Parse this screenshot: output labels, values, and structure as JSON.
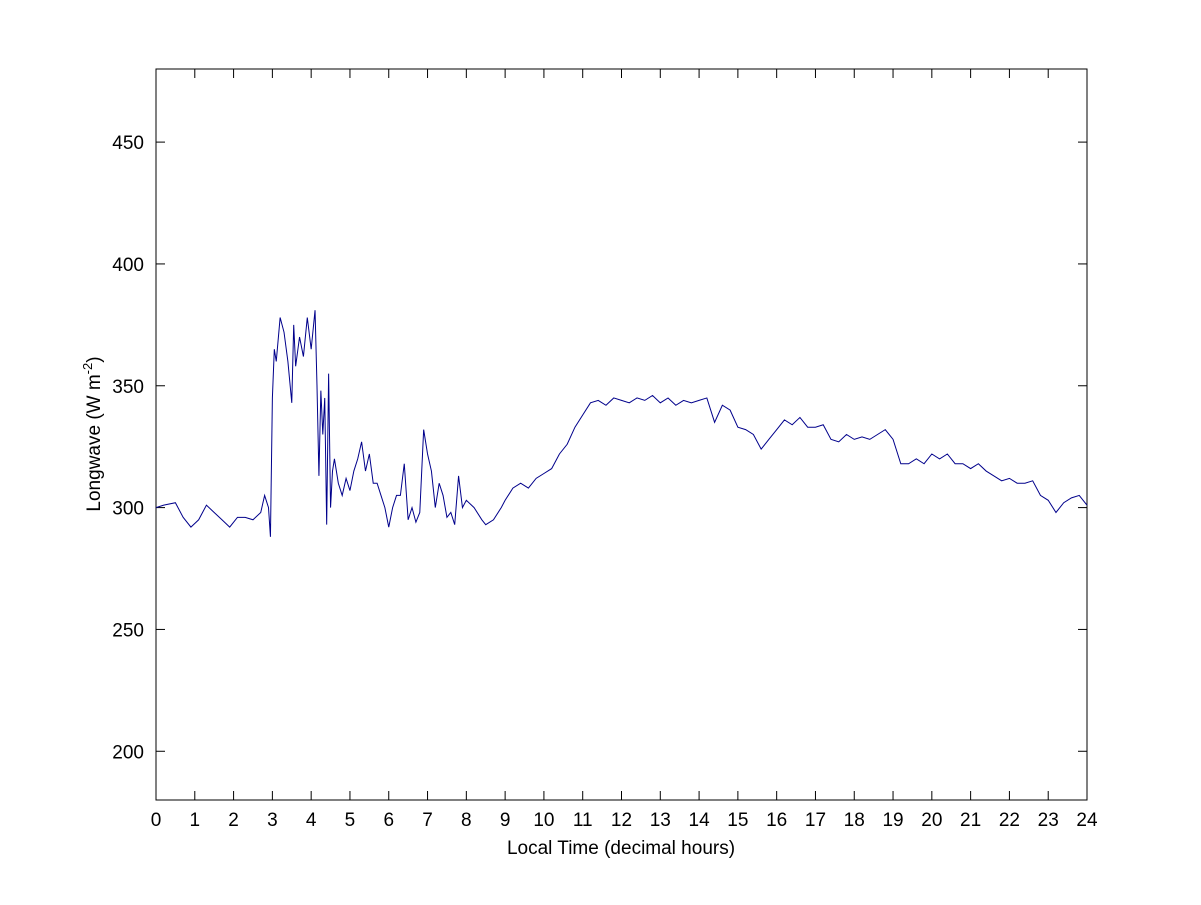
{
  "chart_data": {
    "type": "line",
    "xlabel": "Local Time (decimal hours)",
    "ylabel_parts": [
      "Longwave (W m",
      "-2",
      ")"
    ],
    "x": [
      0,
      0.2,
      0.5,
      0.7,
      0.9,
      1.1,
      1.3,
      1.5,
      1.7,
      1.9,
      2.1,
      2.3,
      2.5,
      2.7,
      2.8,
      2.9,
      2.95,
      3.0,
      3.05,
      3.1,
      3.2,
      3.3,
      3.4,
      3.5,
      3.55,
      3.6,
      3.7,
      3.8,
      3.9,
      4.0,
      4.1,
      4.15,
      4.2,
      4.25,
      4.3,
      4.35,
      4.4,
      4.45,
      4.5,
      4.55,
      4.6,
      4.7,
      4.8,
      4.9,
      5.0,
      5.1,
      5.2,
      5.3,
      5.4,
      5.5,
      5.6,
      5.7,
      5.8,
      5.9,
      6.0,
      6.1,
      6.2,
      6.3,
      6.4,
      6.5,
      6.6,
      6.7,
      6.8,
      6.9,
      7.0,
      7.1,
      7.2,
      7.3,
      7.4,
      7.5,
      7.6,
      7.7,
      7.8,
      7.9,
      8.0,
      8.2,
      8.4,
      8.5,
      8.7,
      8.9,
      9.0,
      9.2,
      9.4,
      9.6,
      9.8,
      10.0,
      10.2,
      10.4,
      10.6,
      10.8,
      11.0,
      11.2,
      11.4,
      11.6,
      11.8,
      12.0,
      12.2,
      12.4,
      12.6,
      12.8,
      13.0,
      13.2,
      13.4,
      13.6,
      13.8,
      14.0,
      14.2,
      14.4,
      14.6,
      14.8,
      15.0,
      15.2,
      15.4,
      15.6,
      15.8,
      16.0,
      16.2,
      16.4,
      16.6,
      16.8,
      17.0,
      17.2,
      17.4,
      17.6,
      17.8,
      18.0,
      18.2,
      18.4,
      18.6,
      18.8,
      19.0,
      19.2,
      19.4,
      19.6,
      19.8,
      20.0,
      20.2,
      20.4,
      20.6,
      20.8,
      21.0,
      21.2,
      21.4,
      21.6,
      21.8,
      22.0,
      22.2,
      22.4,
      22.6,
      22.8,
      23.0,
      23.2,
      23.4,
      23.6,
      23.8,
      24.0
    ],
    "series": [
      {
        "color": "#00008b",
        "values": [
          300,
          301,
          302,
          296,
          292,
          295,
          301,
          298,
          295,
          292,
          296,
          296,
          295,
          298,
          305,
          300,
          288,
          345,
          365,
          360,
          378,
          372,
          360,
          343,
          375,
          358,
          370,
          362,
          378,
          365,
          381,
          350,
          313,
          348,
          330,
          345,
          293,
          355,
          300,
          315,
          320,
          310,
          305,
          312,
          307,
          315,
          320,
          327,
          315,
          322,
          310,
          310,
          305,
          300,
          292,
          300,
          305,
          305,
          318,
          295,
          300,
          294,
          298,
          332,
          322,
          315,
          300,
          310,
          305,
          296,
          298,
          293,
          313,
          300,
          303,
          300,
          295,
          293,
          295,
          300,
          303,
          308,
          310,
          308,
          312,
          314,
          316,
          322,
          326,
          333,
          338,
          343,
          344,
          342,
          345,
          344,
          343,
          345,
          344,
          346,
          343,
          345,
          342,
          344,
          343,
          344,
          345,
          335,
          342,
          340,
          333,
          332,
          330,
          324,
          328,
          332,
          336,
          334,
          337,
          333,
          333,
          334,
          328,
          327,
          330,
          328,
          329,
          328,
          330,
          332,
          328,
          318,
          318,
          320,
          318,
          322,
          320,
          322,
          318,
          318,
          316,
          318,
          315,
          313,
          311,
          312,
          310,
          310,
          311,
          305,
          303,
          298,
          302,
          304,
          305,
          301
        ]
      }
    ],
    "xlim": [
      0,
      24
    ],
    "ylim": [
      180,
      480
    ],
    "xticks": [
      0,
      1,
      2,
      3,
      4,
      5,
      6,
      7,
      8,
      9,
      10,
      11,
      12,
      13,
      14,
      15,
      16,
      17,
      18,
      19,
      20,
      21,
      22,
      23,
      24
    ],
    "yticks": [
      200,
      250,
      300,
      350,
      400,
      450
    ]
  }
}
